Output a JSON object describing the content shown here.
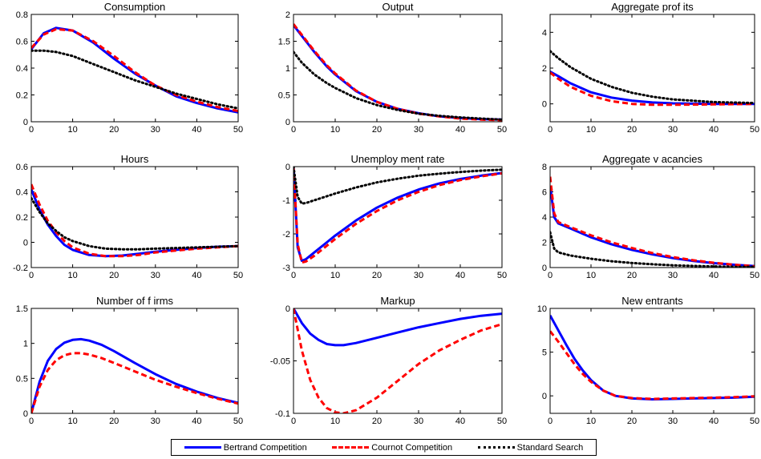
{
  "legend": {
    "entries": [
      {
        "label": "Bertrand Competition",
        "color": "#0000ff",
        "style": "solid"
      },
      {
        "label": "Cournot Competition",
        "color": "#ff0000",
        "style": "dashed"
      },
      {
        "label": "Standard Search",
        "color": "#000000",
        "style": "dotted"
      }
    ],
    "placement": "bottom-center"
  },
  "chart_data": [
    {
      "type": "line",
      "title": "Consumption",
      "xlim": [
        0,
        50
      ],
      "ylim": [
        0,
        0.8
      ],
      "xticks": [
        "0",
        "10",
        "20",
        "30",
        "40",
        "50"
      ],
      "yticks": [
        "0",
        "0.2",
        "0.4",
        "0.6",
        "0.8"
      ],
      "x": [
        0,
        3,
        6,
        10,
        15,
        20,
        25,
        30,
        35,
        40,
        45,
        50
      ],
      "series": [
        {
          "name": "Bertrand Competition",
          "values": [
            0.54,
            0.66,
            0.7,
            0.68,
            0.59,
            0.47,
            0.36,
            0.27,
            0.19,
            0.14,
            0.1,
            0.07
          ]
        },
        {
          "name": "Cournot Competition",
          "values": [
            0.55,
            0.65,
            0.69,
            0.68,
            0.6,
            0.49,
            0.37,
            0.27,
            0.2,
            0.15,
            0.11,
            0.08
          ]
        },
        {
          "name": "Standard Search",
          "values": [
            0.53,
            0.53,
            0.52,
            0.49,
            0.43,
            0.37,
            0.31,
            0.26,
            0.21,
            0.17,
            0.13,
            0.1
          ]
        }
      ]
    },
    {
      "type": "line",
      "title": "Output",
      "xlim": [
        0,
        50
      ],
      "ylim": [
        0,
        2
      ],
      "xticks": [
        "0",
        "10",
        "20",
        "30",
        "40",
        "50"
      ],
      "yticks": [
        "0",
        "0.5",
        "1",
        "1.5",
        "2"
      ],
      "x": [
        0,
        2,
        5,
        8,
        10,
        15,
        20,
        25,
        30,
        35,
        40,
        45,
        50
      ],
      "series": [
        {
          "name": "Bertrand Competition",
          "values": [
            1.8,
            1.6,
            1.3,
            1.03,
            0.88,
            0.57,
            0.37,
            0.24,
            0.16,
            0.1,
            0.07,
            0.05,
            0.04
          ]
        },
        {
          "name": "Cournot Competition",
          "values": [
            1.82,
            1.62,
            1.32,
            1.05,
            0.9,
            0.58,
            0.37,
            0.24,
            0.15,
            0.1,
            0.06,
            0.04,
            0.03
          ]
        },
        {
          "name": "Standard Search",
          "values": [
            1.3,
            1.1,
            0.88,
            0.72,
            0.63,
            0.44,
            0.31,
            0.22,
            0.15,
            0.11,
            0.08,
            0.06,
            0.04
          ]
        }
      ]
    },
    {
      "type": "line",
      "title": "Aggregate prof its",
      "xlim": [
        0,
        50
      ],
      "ylim": [
        -1,
        5
      ],
      "xticks": [
        "0",
        "10",
        "20",
        "30",
        "40",
        "50"
      ],
      "yticks": [
        "0",
        "2",
        "4"
      ],
      "x": [
        0,
        2,
        5,
        10,
        15,
        20,
        25,
        30,
        40,
        50
      ],
      "series": [
        {
          "name": "Bertrand Competition",
          "values": [
            1.8,
            1.55,
            1.15,
            0.65,
            0.35,
            0.18,
            0.08,
            0.03,
            0.0,
            0.0
          ]
        },
        {
          "name": "Cournot Competition",
          "values": [
            1.75,
            1.4,
            0.95,
            0.45,
            0.15,
            0.0,
            -0.05,
            -0.05,
            -0.03,
            0.0
          ]
        },
        {
          "name": "Standard Search",
          "values": [
            2.95,
            2.55,
            2.05,
            1.4,
            0.95,
            0.62,
            0.4,
            0.25,
            0.1,
            0.05
          ]
        }
      ]
    },
    {
      "type": "line",
      "title": "Hours",
      "xlim": [
        0,
        50
      ],
      "ylim": [
        -0.2,
        0.6
      ],
      "xticks": [
        "0",
        "10",
        "20",
        "30",
        "40",
        "50"
      ],
      "yticks": [
        "-0.2",
        "0",
        "0.2",
        "0.4",
        "0.6"
      ],
      "x": [
        0,
        2,
        4,
        6,
        8,
        10,
        14,
        18,
        22,
        26,
        30,
        35,
        40,
        45,
        50
      ],
      "series": [
        {
          "name": "Bertrand Competition",
          "values": [
            0.42,
            0.26,
            0.14,
            0.05,
            -0.02,
            -0.06,
            -0.1,
            -0.11,
            -0.105,
            -0.09,
            -0.075,
            -0.06,
            -0.045,
            -0.035,
            -0.03
          ]
        },
        {
          "name": "Cournot Competition",
          "values": [
            0.46,
            0.3,
            0.17,
            0.08,
            0.01,
            -0.04,
            -0.09,
            -0.11,
            -0.11,
            -0.1,
            -0.08,
            -0.065,
            -0.05,
            -0.04,
            -0.03
          ]
        },
        {
          "name": "Standard Search",
          "values": [
            0.35,
            0.24,
            0.15,
            0.09,
            0.04,
            0.01,
            -0.03,
            -0.05,
            -0.055,
            -0.055,
            -0.05,
            -0.045,
            -0.04,
            -0.035,
            -0.03
          ]
        }
      ]
    },
    {
      "type": "line",
      "title": "Unemploy ment rate",
      "xlim": [
        0,
        50
      ],
      "ylim": [
        -3,
        0
      ],
      "xticks": [
        "0",
        "10",
        "20",
        "30",
        "40",
        "50"
      ],
      "yticks": [
        "-3",
        "-2",
        "-1",
        "0"
      ],
      "x": [
        0,
        1,
        2,
        3,
        5,
        8,
        10,
        15,
        20,
        25,
        30,
        35,
        40,
        45,
        50
      ],
      "series": [
        {
          "name": "Bertrand Competition",
          "values": [
            0,
            -2.4,
            -2.8,
            -2.75,
            -2.55,
            -2.25,
            -2.05,
            -1.6,
            -1.22,
            -0.92,
            -0.68,
            -0.5,
            -0.37,
            -0.27,
            -0.19
          ]
        },
        {
          "name": "Cournot Competition",
          "values": [
            0,
            -2.3,
            -2.85,
            -2.82,
            -2.65,
            -2.35,
            -2.15,
            -1.7,
            -1.32,
            -1.0,
            -0.75,
            -0.55,
            -0.4,
            -0.29,
            -0.2
          ]
        },
        {
          "name": "Standard Search",
          "values": [
            0,
            -0.9,
            -1.1,
            -1.08,
            -1.0,
            -0.88,
            -0.8,
            -0.62,
            -0.47,
            -0.36,
            -0.27,
            -0.21,
            -0.16,
            -0.12,
            -0.09
          ]
        }
      ]
    },
    {
      "type": "line",
      "title": "Aggregate v acancies",
      "xlim": [
        0,
        50
      ],
      "ylim": [
        0,
        8
      ],
      "xticks": [
        "0",
        "10",
        "20",
        "30",
        "40",
        "50"
      ],
      "yticks": [
        "0",
        "2",
        "4",
        "6",
        "8"
      ],
      "x": [
        0,
        1,
        2,
        5,
        10,
        15,
        20,
        25,
        30,
        35,
        40,
        45,
        50
      ],
      "series": [
        {
          "name": "Bertrand Competition",
          "values": [
            6.5,
            4.0,
            3.5,
            3.1,
            2.4,
            1.85,
            1.4,
            1.05,
            0.75,
            0.52,
            0.35,
            0.22,
            0.12
          ]
        },
        {
          "name": "Cournot Competition",
          "values": [
            7.2,
            4.3,
            3.6,
            3.2,
            2.55,
            2.0,
            1.55,
            1.15,
            0.83,
            0.58,
            0.38,
            0.22,
            0.1
          ]
        },
        {
          "name": "Standard Search",
          "values": [
            2.8,
            1.5,
            1.2,
            0.95,
            0.7,
            0.5,
            0.36,
            0.26,
            0.18,
            0.13,
            0.09,
            0.06,
            0.05
          ]
        }
      ]
    },
    {
      "type": "line",
      "title": "Number of  f irms",
      "xlim": [
        0,
        50
      ],
      "ylim": [
        0,
        1.5
      ],
      "xticks": [
        "0",
        "10",
        "20",
        "30",
        "40",
        "50"
      ],
      "yticks": [
        "0",
        "0.5",
        "1",
        "1.5"
      ],
      "x": [
        0,
        2,
        4,
        6,
        8,
        10,
        12,
        14,
        17,
        20,
        25,
        30,
        35,
        40,
        45,
        50
      ],
      "series": [
        {
          "name": "Bertrand Competition",
          "values": [
            0,
            0.45,
            0.75,
            0.92,
            1.01,
            1.05,
            1.06,
            1.04,
            0.98,
            0.89,
            0.72,
            0.56,
            0.42,
            0.31,
            0.22,
            0.15
          ]
        },
        {
          "name": "Cournot Competition",
          "values": [
            0,
            0.38,
            0.62,
            0.76,
            0.83,
            0.86,
            0.86,
            0.84,
            0.79,
            0.72,
            0.6,
            0.48,
            0.38,
            0.29,
            0.21,
            0.14
          ]
        }
      ]
    },
    {
      "type": "line",
      "title": "Markup",
      "xlim": [
        0,
        50
      ],
      "ylim": [
        -0.1,
        0
      ],
      "xticks": [
        "0",
        "10",
        "20",
        "30",
        "40",
        "50"
      ],
      "yticks": [
        "-0.1",
        "-0.05",
        "0"
      ],
      "x": [
        0,
        2,
        4,
        6,
        8,
        10,
        12,
        15,
        20,
        25,
        30,
        35,
        40,
        45,
        50
      ],
      "series": [
        {
          "name": "Bertrand Competition",
          "values": [
            0,
            -0.014,
            -0.024,
            -0.03,
            -0.034,
            -0.035,
            -0.035,
            -0.033,
            -0.028,
            -0.023,
            -0.018,
            -0.014,
            -0.01,
            -0.007,
            -0.005
          ]
        },
        {
          "name": "Cournot Competition",
          "values": [
            0,
            -0.04,
            -0.068,
            -0.085,
            -0.095,
            -0.099,
            -0.1,
            -0.097,
            -0.085,
            -0.069,
            -0.053,
            -0.04,
            -0.03,
            -0.021,
            -0.015
          ]
        }
      ]
    },
    {
      "type": "line",
      "title": "New entrants",
      "xlim": [
        0,
        50
      ],
      "ylim": [
        -2,
        10
      ],
      "xticks": [
        "0",
        "10",
        "20",
        "30",
        "40",
        "50"
      ],
      "yticks": [
        "0",
        "5",
        "10"
      ],
      "x": [
        0,
        2,
        4,
        6,
        8,
        10,
        13,
        16,
        20,
        25,
        30,
        35,
        40,
        45,
        50
      ],
      "series": [
        {
          "name": "Bertrand Competition",
          "values": [
            9.2,
            7.5,
            5.8,
            4.2,
            2.9,
            1.8,
            0.6,
            0.0,
            -0.3,
            -0.4,
            -0.35,
            -0.3,
            -0.25,
            -0.2,
            -0.1
          ]
        },
        {
          "name": "Cournot Competition",
          "values": [
            7.4,
            6.2,
            4.9,
            3.6,
            2.5,
            1.6,
            0.6,
            0.0,
            -0.25,
            -0.35,
            -0.3,
            -0.25,
            -0.2,
            -0.15,
            -0.05
          ]
        }
      ]
    }
  ]
}
